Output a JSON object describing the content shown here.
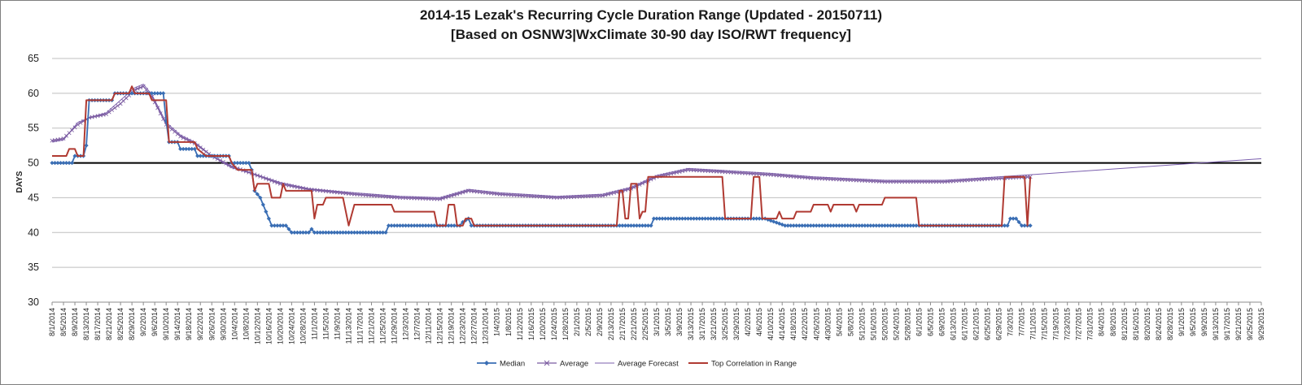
{
  "chart_data": {
    "type": "line",
    "title": "2014-15 Lezak's Recurring Cycle Duration Range (Updated - 20150711)",
    "subtitle": "[Based on OSNW3|WxClimate 30-90 day ISO/RWT frequency]",
    "ylabel": "DAYS",
    "xlabel": "",
    "ylim": [
      30,
      65
    ],
    "yticks": [
      30,
      35,
      40,
      45,
      50,
      55,
      60,
      65
    ],
    "x_start": "8/1/2014",
    "x_end": "9/29/2015",
    "x_tick_every_days": 4,
    "grid": "horizontal",
    "legend_position": "bottom",
    "reference_line": 50,
    "colors": {
      "median": "#3a6eb4",
      "average": "#7a5aa0",
      "forecast": "#7b5fae",
      "top": "#b03a32",
      "reference": "#000000",
      "grid": "#bfbfbf"
    },
    "series": [
      {
        "name": "Median",
        "points": [
          [
            "8/1/2014",
            50
          ],
          [
            "8/8/2014",
            50
          ],
          [
            "8/9/2014",
            51
          ],
          [
            "8/12/2014",
            51
          ],
          [
            "8/13/2014",
            52.5
          ],
          [
            "8/14/2014",
            59
          ],
          [
            "8/22/2014",
            59
          ],
          [
            "8/23/2014",
            60
          ],
          [
            "9/9/2014",
            60
          ],
          [
            "9/10/2014",
            56
          ],
          [
            "9/11/2014",
            53
          ],
          [
            "9/14/2014",
            53
          ],
          [
            "9/15/2014",
            52
          ],
          [
            "9/20/2014",
            52
          ],
          [
            "9/21/2014",
            51
          ],
          [
            "10/2/2014",
            51
          ],
          [
            "10/3/2014",
            50
          ],
          [
            "10/9/2014",
            50
          ],
          [
            "10/10/2014",
            49
          ],
          [
            "10/11/2014",
            46
          ],
          [
            "10/13/2014",
            45
          ],
          [
            "10/15/2014",
            43
          ],
          [
            "10/17/2014",
            41
          ],
          [
            "10/22/2014",
            41
          ],
          [
            "10/24/2014",
            40
          ],
          [
            "10/30/2014",
            40
          ],
          [
            "10/31/2014",
            40.5
          ],
          [
            "11/1/2014",
            40
          ],
          [
            "11/26/2014",
            40
          ],
          [
            "11/27/2014",
            41
          ],
          [
            "12/22/2014",
            41
          ],
          [
            "12/23/2014",
            41.5
          ],
          [
            "12/25/2014",
            42
          ],
          [
            "12/26/2014",
            41
          ],
          [
            "2/27/2015",
            41
          ],
          [
            "2/28/2015",
            42
          ],
          [
            "4/8/2015",
            42
          ],
          [
            "4/15/2015",
            41
          ],
          [
            "7/2/2015",
            41
          ],
          [
            "7/3/2015",
            42
          ],
          [
            "7/5/2015",
            42
          ],
          [
            "7/7/2015",
            41
          ],
          [
            "7/10/2015",
            41
          ]
        ]
      },
      {
        "name": "Average",
        "points": [
          [
            "8/1/2014",
            53.2
          ],
          [
            "8/5/2014",
            53.5
          ],
          [
            "8/10/2014",
            55.5
          ],
          [
            "8/14/2014",
            56.5
          ],
          [
            "8/20/2014",
            57
          ],
          [
            "8/25/2014",
            58.5
          ],
          [
            "8/30/2014",
            60.5
          ],
          [
            "9/2/2014",
            61
          ],
          [
            "9/5/2014",
            59.5
          ],
          [
            "9/10/2014",
            55.5
          ],
          [
            "9/15/2014",
            53.8
          ],
          [
            "9/20/2014",
            52.8
          ],
          [
            "9/26/2014",
            51
          ],
          [
            "10/3/2014",
            49.5
          ],
          [
            "10/10/2014",
            48.5
          ],
          [
            "10/20/2014",
            47
          ],
          [
            "10/30/2014",
            46.2
          ],
          [
            "11/15/2014",
            45.5
          ],
          [
            "12/1/2014",
            45
          ],
          [
            "12/15/2014",
            44.8
          ],
          [
            "12/25/2014",
            46
          ],
          [
            "1/5/2015",
            45.5
          ],
          [
            "1/25/2015",
            45
          ],
          [
            "2/10/2015",
            45.3
          ],
          [
            "2/20/2015",
            46.3
          ],
          [
            "3/1/2015",
            48
          ],
          [
            "3/12/2015",
            49
          ],
          [
            "3/25/2015",
            48.7
          ],
          [
            "4/10/2015",
            48.3
          ],
          [
            "4/25/2015",
            47.8
          ],
          [
            "5/20/2015",
            47.3
          ],
          [
            "6/10/2015",
            47.3
          ],
          [
            "6/25/2015",
            47.7
          ],
          [
            "7/10/2015",
            48
          ]
        ]
      },
      {
        "name": "Average Forecast",
        "points": [
          [
            "8/1/2014",
            53
          ],
          [
            "8/5/2014",
            53.3
          ],
          [
            "8/10/2014",
            55.8
          ],
          [
            "8/14/2014",
            56.5
          ],
          [
            "8/20/2014",
            57.2
          ],
          [
            "8/25/2014",
            59
          ],
          [
            "8/30/2014",
            60.8
          ],
          [
            "9/2/2014",
            61.3
          ],
          [
            "9/5/2014",
            59.8
          ],
          [
            "9/10/2014",
            55.8
          ],
          [
            "9/15/2014",
            54
          ],
          [
            "9/20/2014",
            53
          ],
          [
            "9/26/2014",
            51
          ],
          [
            "10/3/2014",
            49.3
          ],
          [
            "10/10/2014",
            48.5
          ],
          [
            "10/20/2014",
            47.2
          ],
          [
            "10/30/2014",
            46.3
          ],
          [
            "11/15/2014",
            45.7
          ],
          [
            "12/1/2014",
            45.2
          ],
          [
            "12/15/2014",
            45
          ],
          [
            "12/25/2014",
            46.2
          ],
          [
            "1/5/2015",
            45.7
          ],
          [
            "1/25/2015",
            45.2
          ],
          [
            "2/10/2015",
            45.5
          ],
          [
            "2/20/2015",
            46.5
          ],
          [
            "3/1/2015",
            48.2
          ],
          [
            "3/12/2015",
            49.2
          ],
          [
            "3/25/2015",
            48.9
          ],
          [
            "4/10/2015",
            48.5
          ],
          [
            "4/25/2015",
            48
          ],
          [
            "5/20/2015",
            47.5
          ],
          [
            "6/10/2015",
            47.5
          ],
          [
            "6/25/2015",
            47.9
          ],
          [
            "7/10/2015",
            48.3
          ],
          [
            "9/29/2015",
            50.6
          ]
        ]
      },
      {
        "name": "Top Correlation in Range",
        "points": [
          [
            "8/1/2014",
            51
          ],
          [
            "8/6/2014",
            51
          ],
          [
            "8/7/2014",
            52
          ],
          [
            "8/9/2014",
            52
          ],
          [
            "8/10/2014",
            51
          ],
          [
            "8/12/2014",
            51
          ],
          [
            "8/13/2014",
            59
          ],
          [
            "8/22/2014",
            59
          ],
          [
            "8/23/2014",
            60
          ],
          [
            "8/28/2014",
            60
          ],
          [
            "8/29/2014",
            61
          ],
          [
            "8/30/2014",
            60
          ],
          [
            "9/4/2014",
            60
          ],
          [
            "9/5/2014",
            59
          ],
          [
            "9/10/2014",
            59
          ],
          [
            "9/11/2014",
            53
          ],
          [
            "9/20/2014",
            53
          ],
          [
            "9/21/2014",
            52
          ],
          [
            "9/24/2014",
            51
          ],
          [
            "10/2/2014",
            51
          ],
          [
            "10/3/2014",
            50
          ],
          [
            "10/5/2014",
            49
          ],
          [
            "10/10/2014",
            49
          ],
          [
            "10/11/2014",
            46
          ],
          [
            "10/12/2014",
            47
          ],
          [
            "10/16/2014",
            47
          ],
          [
            "10/17/2014",
            45
          ],
          [
            "10/20/2014",
            45
          ],
          [
            "10/21/2014",
            47
          ],
          [
            "10/22/2014",
            46
          ],
          [
            "10/31/2014",
            46
          ],
          [
            "11/1/2014",
            42
          ],
          [
            "11/2/2014",
            44
          ],
          [
            "11/4/2014",
            44
          ],
          [
            "11/5/2014",
            45
          ],
          [
            "11/11/2014",
            45
          ],
          [
            "11/13/2014",
            41
          ],
          [
            "11/15/2014",
            44
          ],
          [
            "11/28/2014",
            44
          ],
          [
            "11/29/2014",
            43
          ],
          [
            "12/13/2014",
            43
          ],
          [
            "12/14/2014",
            41
          ],
          [
            "12/17/2014",
            41
          ],
          [
            "12/18/2014",
            44
          ],
          [
            "12/20/2014",
            44
          ],
          [
            "12/21/2014",
            41
          ],
          [
            "12/23/2014",
            41
          ],
          [
            "12/24/2014",
            42
          ],
          [
            "12/26/2014",
            42
          ],
          [
            "12/27/2014",
            41
          ],
          [
            "2/15/2015",
            41
          ],
          [
            "2/16/2015",
            46
          ],
          [
            "2/17/2015",
            46
          ],
          [
            "2/18/2015",
            42
          ],
          [
            "2/19/2015",
            42
          ],
          [
            "2/20/2015",
            47
          ],
          [
            "2/22/2015",
            47
          ],
          [
            "2/23/2015",
            42
          ],
          [
            "2/24/2015",
            43
          ],
          [
            "2/25/2015",
            43
          ],
          [
            "2/26/2015",
            48
          ],
          [
            "3/24/2015",
            48
          ],
          [
            "3/25/2015",
            42
          ],
          [
            "4/3/2015",
            42
          ],
          [
            "4/4/2015",
            48
          ],
          [
            "4/6/2015",
            48
          ],
          [
            "4/7/2015",
            42
          ],
          [
            "4/12/2015",
            42
          ],
          [
            "4/13/2015",
            43
          ],
          [
            "4/14/2015",
            42
          ],
          [
            "4/18/2015",
            42
          ],
          [
            "4/19/2015",
            43
          ],
          [
            "4/24/2015",
            43
          ],
          [
            "4/25/2015",
            44
          ],
          [
            "4/30/2015",
            44
          ],
          [
            "5/1/2015",
            43
          ],
          [
            "5/2/2015",
            44
          ],
          [
            "5/9/2015",
            44
          ],
          [
            "5/10/2015",
            43
          ],
          [
            "5/11/2015",
            44
          ],
          [
            "5/19/2015",
            44
          ],
          [
            "5/20/2015",
            45
          ],
          [
            "5/31/2015",
            45
          ],
          [
            "6/1/2015",
            41
          ],
          [
            "6/30/2015",
            41
          ],
          [
            "7/1/2015",
            48
          ],
          [
            "7/8/2015",
            48
          ],
          [
            "7/9/2015",
            41
          ],
          [
            "7/10/2015",
            48
          ]
        ]
      }
    ]
  }
}
